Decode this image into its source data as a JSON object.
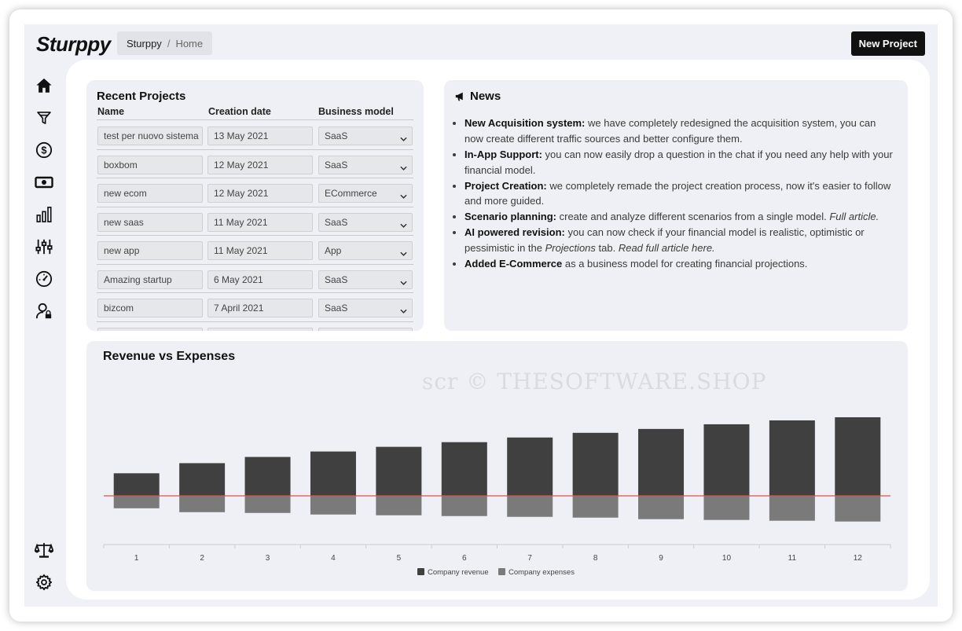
{
  "header": {
    "logo": "Sturppy",
    "breadcrumb": {
      "root": "Sturppy",
      "separator": "/",
      "current": "Home"
    },
    "new_project_label": "New Project"
  },
  "sidebar": {
    "items": [
      {
        "name": "home",
        "icon": "home-icon"
      },
      {
        "name": "acquisition",
        "icon": "funnel-icon"
      },
      {
        "name": "revenue",
        "icon": "dollar-circle-icon"
      },
      {
        "name": "expenses",
        "icon": "banknote-icon"
      },
      {
        "name": "reports",
        "icon": "bar-chart-icon"
      },
      {
        "name": "scenarios",
        "icon": "sliders-icon"
      },
      {
        "name": "dashboard",
        "icon": "gauge-icon"
      },
      {
        "name": "team",
        "icon": "user-lock-icon"
      },
      {
        "name": "balance",
        "icon": "scale-icon"
      },
      {
        "name": "settings",
        "icon": "gear-icon"
      }
    ]
  },
  "projects": {
    "title": "Recent Projects",
    "columns": [
      "Name",
      "Creation date",
      "Business model"
    ],
    "rows": [
      {
        "name": "test per nuovo sistema",
        "date": "13 May 2021",
        "model": "SaaS"
      },
      {
        "name": "boxbom",
        "date": "12 May 2021",
        "model": "SaaS"
      },
      {
        "name": "new ecom",
        "date": "12 May 2021",
        "model": "ECommerce"
      },
      {
        "name": "new saas",
        "date": "11 May 2021",
        "model": "SaaS"
      },
      {
        "name": "new app",
        "date": "11 May 2021",
        "model": "App"
      },
      {
        "name": "Amazing startup",
        "date": "6 May 2021",
        "model": "SaaS"
      },
      {
        "name": "bizcom",
        "date": "7 April 2021",
        "model": "SaaS"
      }
    ]
  },
  "news": {
    "title": "News",
    "icon": "megaphone-icon",
    "items": [
      {
        "head": "New Acquisition system:",
        "text": " we have completely redesigned the acquisition system, you can now create different traffic sources and better configure them."
      },
      {
        "head": "In-App Support:",
        "text": " you can now easily drop a question in the chat if you need any help with your financial model."
      },
      {
        "head": "Project Creation:",
        "text": " we completely remade the project creation process, now it's easier to follow and more guided."
      },
      {
        "head": "Scenario planning:",
        "text": " create and analyze different scenarios from a single model. ",
        "italic": "Full article."
      },
      {
        "head": "AI powered revision:",
        "text": " you can now check if your financial model is realistic, optimistic or pessimistic in the ",
        "italic_mid": "Projections",
        "text2": " tab. ",
        "italic": "Read full article here."
      },
      {
        "head": "Added E-Commerce",
        "text": " as a business model for creating financial projections."
      }
    ]
  },
  "watermark": "scr © THESOFTWARE.SHOP",
  "chart_data": {
    "type": "bar",
    "title": "Revenue vs Expenses",
    "categories": [
      "1",
      "2",
      "3",
      "4",
      "5",
      "6",
      "7",
      "8",
      "9",
      "10",
      "11",
      "12"
    ],
    "series": [
      {
        "name": "Company revenue",
        "color": "#404040",
        "values": [
          29,
          42,
          50,
          57,
          63,
          69,
          75,
          81,
          86,
          92,
          97,
          101
        ]
      },
      {
        "name": "Company expenses",
        "color": "#7a7a7a",
        "values": [
          -16,
          -21,
          -22,
          -24,
          -25,
          -26,
          -27,
          -28,
          -30,
          -31,
          -32,
          -33
        ]
      }
    ],
    "zero_line_color": "#d9534f",
    "stacked": true,
    "legend_position": "bottom",
    "grid": false
  }
}
